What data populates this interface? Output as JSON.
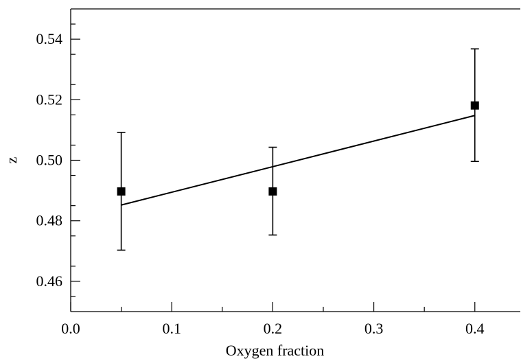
{
  "chart_data": {
    "type": "scatter",
    "title": "",
    "xlabel": "Oxygen fraction",
    "ylabel": "z",
    "xlim": [
      0.0,
      0.445
    ],
    "ylim": [
      0.45,
      0.55
    ],
    "xticks": [
      "0.0",
      "0.1",
      "0.2",
      "0.3",
      "0.4"
    ],
    "yticks": [
      "0.46",
      "0.48",
      "0.50",
      "0.52",
      "0.54"
    ],
    "grid": false,
    "legend": "none",
    "series": [
      {
        "marker": "square",
        "color": "#000000",
        "points": [
          {
            "x": 0.05,
            "y": 0.4897,
            "err_low": 0.4703,
            "err_high": 0.5092
          },
          {
            "x": 0.2,
            "y": 0.4897,
            "err_low": 0.4753,
            "err_high": 0.5043
          },
          {
            "x": 0.4,
            "y": 0.5181,
            "err_low": 0.4996,
            "err_high": 0.5368
          }
        ]
      }
    ],
    "fit_line": {
      "color": "#000000",
      "x": [
        0.05,
        0.4
      ],
      "y": [
        0.4852,
        0.5148
      ]
    }
  }
}
